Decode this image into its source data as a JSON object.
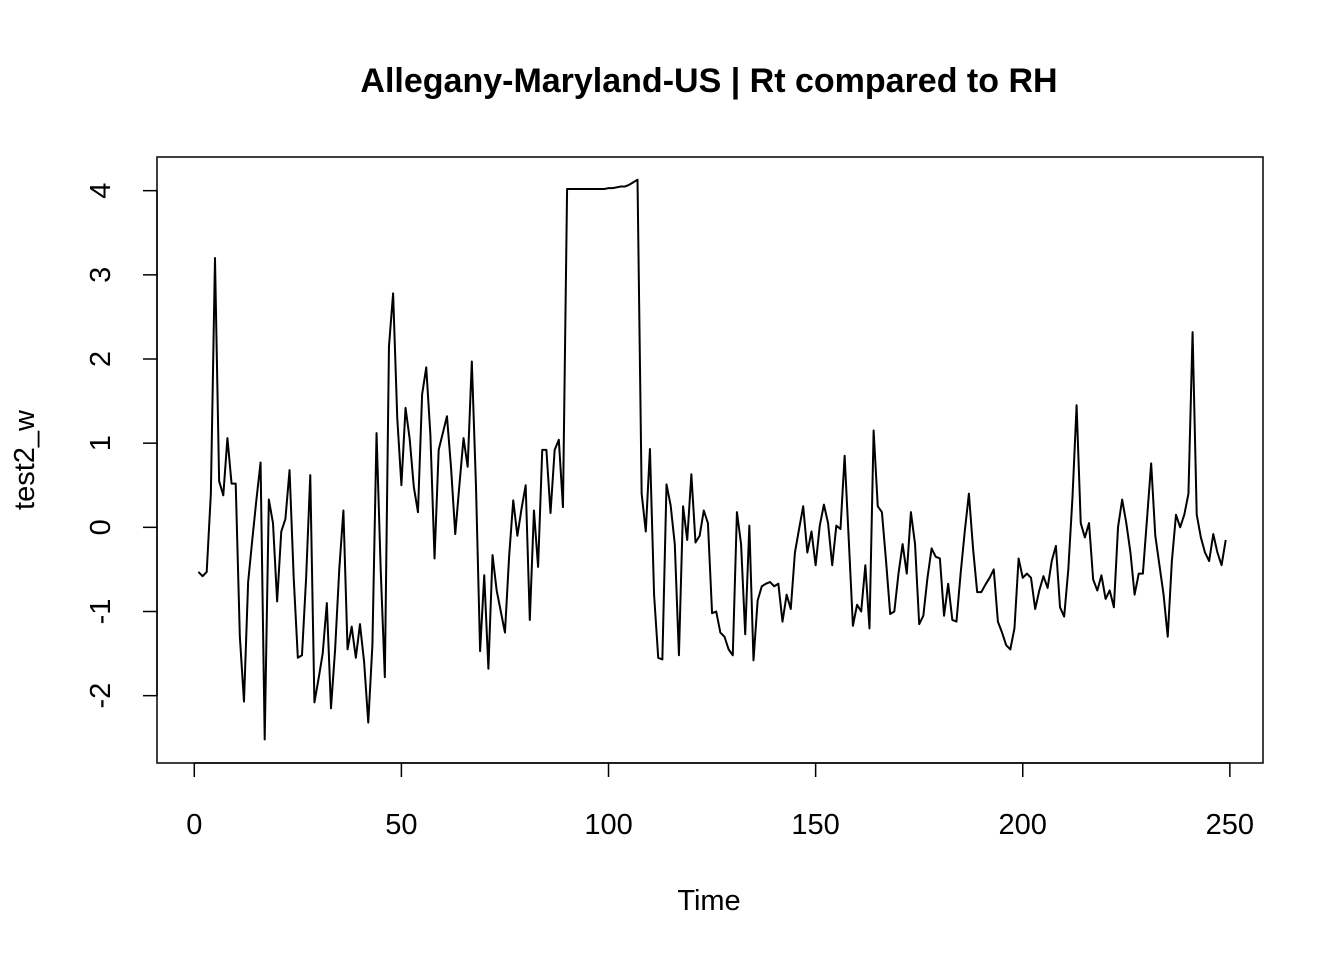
{
  "chart_data": {
    "type": "line",
    "title": "Allegany-Maryland-US | Rt compared to RH",
    "xlabel": "Time",
    "ylabel": "test2_w",
    "xlim": [
      -9,
      258
    ],
    "ylim": [
      -2.8,
      4.4
    ],
    "x_ticks": [
      "0",
      "50",
      "100",
      "150",
      "200",
      "250"
    ],
    "x_tick_values": [
      0,
      50,
      100,
      150,
      200,
      250
    ],
    "y_ticks": [
      "-2",
      "-1",
      "0",
      "1",
      "2",
      "3",
      "4"
    ],
    "y_tick_values": [
      -2,
      -1,
      0,
      1,
      2,
      3,
      4
    ],
    "grid": false,
    "line_color": "#000000",
    "series": [
      {
        "x_start": 1,
        "values": [
          -0.53,
          -0.58,
          -0.53,
          0.4,
          3.2,
          0.55,
          0.38,
          1.06,
          0.52,
          0.52,
          -1.3,
          -2.07,
          -0.65,
          -0.15,
          0.33,
          0.77,
          -2.52,
          0.33,
          0.05,
          -0.88,
          -0.05,
          0.1,
          0.68,
          -0.6,
          -1.55,
          -1.52,
          -0.6,
          0.62,
          -2.08,
          -1.8,
          -1.5,
          -0.9,
          -2.15,
          -1.45,
          -0.5,
          0.2,
          -1.45,
          -1.18,
          -1.55,
          -1.15,
          -1.6,
          -2.32,
          -1.4,
          1.12,
          -0.5,
          -1.78,
          2.15,
          2.78,
          1.3,
          0.5,
          1.42,
          1.05,
          0.48,
          0.18,
          1.58,
          1.9,
          1.1,
          -0.37,
          0.92,
          1.12,
          1.32,
          0.7,
          -0.08,
          0.5,
          1.06,
          0.72,
          1.97,
          0.5,
          -1.47,
          -0.57,
          -1.68,
          -0.33,
          -0.75,
          -1.0,
          -1.25,
          -0.35,
          0.32,
          -0.1,
          0.22,
          0.5,
          -1.1,
          0.2,
          -0.47,
          0.92,
          0.92,
          0.17,
          0.92,
          1.04,
          0.24,
          4.02,
          4.02,
          4.02,
          4.02,
          4.02,
          4.02,
          4.02,
          4.02,
          4.02,
          4.02,
          4.03,
          4.03,
          4.04,
          4.05,
          4.05,
          4.07,
          4.1,
          4.13,
          0.4,
          -0.05,
          0.93,
          -0.8,
          -1.55,
          -1.57,
          0.51,
          0.26,
          -0.2,
          -1.52,
          0.25,
          -0.15,
          0.63,
          -0.18,
          -0.1,
          0.2,
          0.05,
          -1.02,
          -1.0,
          -1.25,
          -1.3,
          -1.45,
          -1.52,
          0.18,
          -0.2,
          -1.27,
          0.02,
          -1.58,
          -0.87,
          -0.7,
          -0.67,
          -0.65,
          -0.7,
          -0.67,
          -1.12,
          -0.8,
          -0.97,
          -0.3,
          -0.02,
          0.25,
          -0.3,
          -0.05,
          -0.45,
          0.02,
          0.27,
          0.05,
          -0.45,
          0.02,
          -0.02,
          0.85,
          -0.15,
          -1.17,
          -0.92,
          -1.0,
          -0.45,
          -1.2,
          1.15,
          0.25,
          0.18,
          -0.4,
          -1.03,
          -1.0,
          -0.55,
          -0.2,
          -0.55,
          0.18,
          -0.2,
          -1.15,
          -1.05,
          -0.6,
          -0.25,
          -0.35,
          -0.37,
          -1.05,
          -0.67,
          -1.1,
          -1.12,
          -0.55,
          -0.05,
          0.4,
          -0.25,
          -0.77,
          -0.77,
          -0.68,
          -0.6,
          -0.5,
          -1.12,
          -1.25,
          -1.4,
          -1.45,
          -1.2,
          -0.37,
          -0.6,
          -0.55,
          -0.6,
          -0.97,
          -0.75,
          -0.58,
          -0.72,
          -0.4,
          -0.22,
          -0.95,
          -1.06,
          -0.5,
          0.35,
          1.45,
          0.05,
          -0.12,
          0.05,
          -0.62,
          -0.75,
          -0.57,
          -0.85,
          -0.75,
          -0.95,
          0.0,
          0.33,
          0.05,
          -0.3,
          -0.8,
          -0.55,
          -0.55,
          0.1,
          0.76,
          -0.1,
          -0.45,
          -0.8,
          -1.3,
          -0.4,
          0.15,
          0.0,
          0.15,
          0.4,
          2.32,
          0.15,
          -0.12,
          -0.3,
          -0.4,
          -0.08,
          -0.3,
          -0.45,
          -0.15
        ]
      }
    ]
  }
}
